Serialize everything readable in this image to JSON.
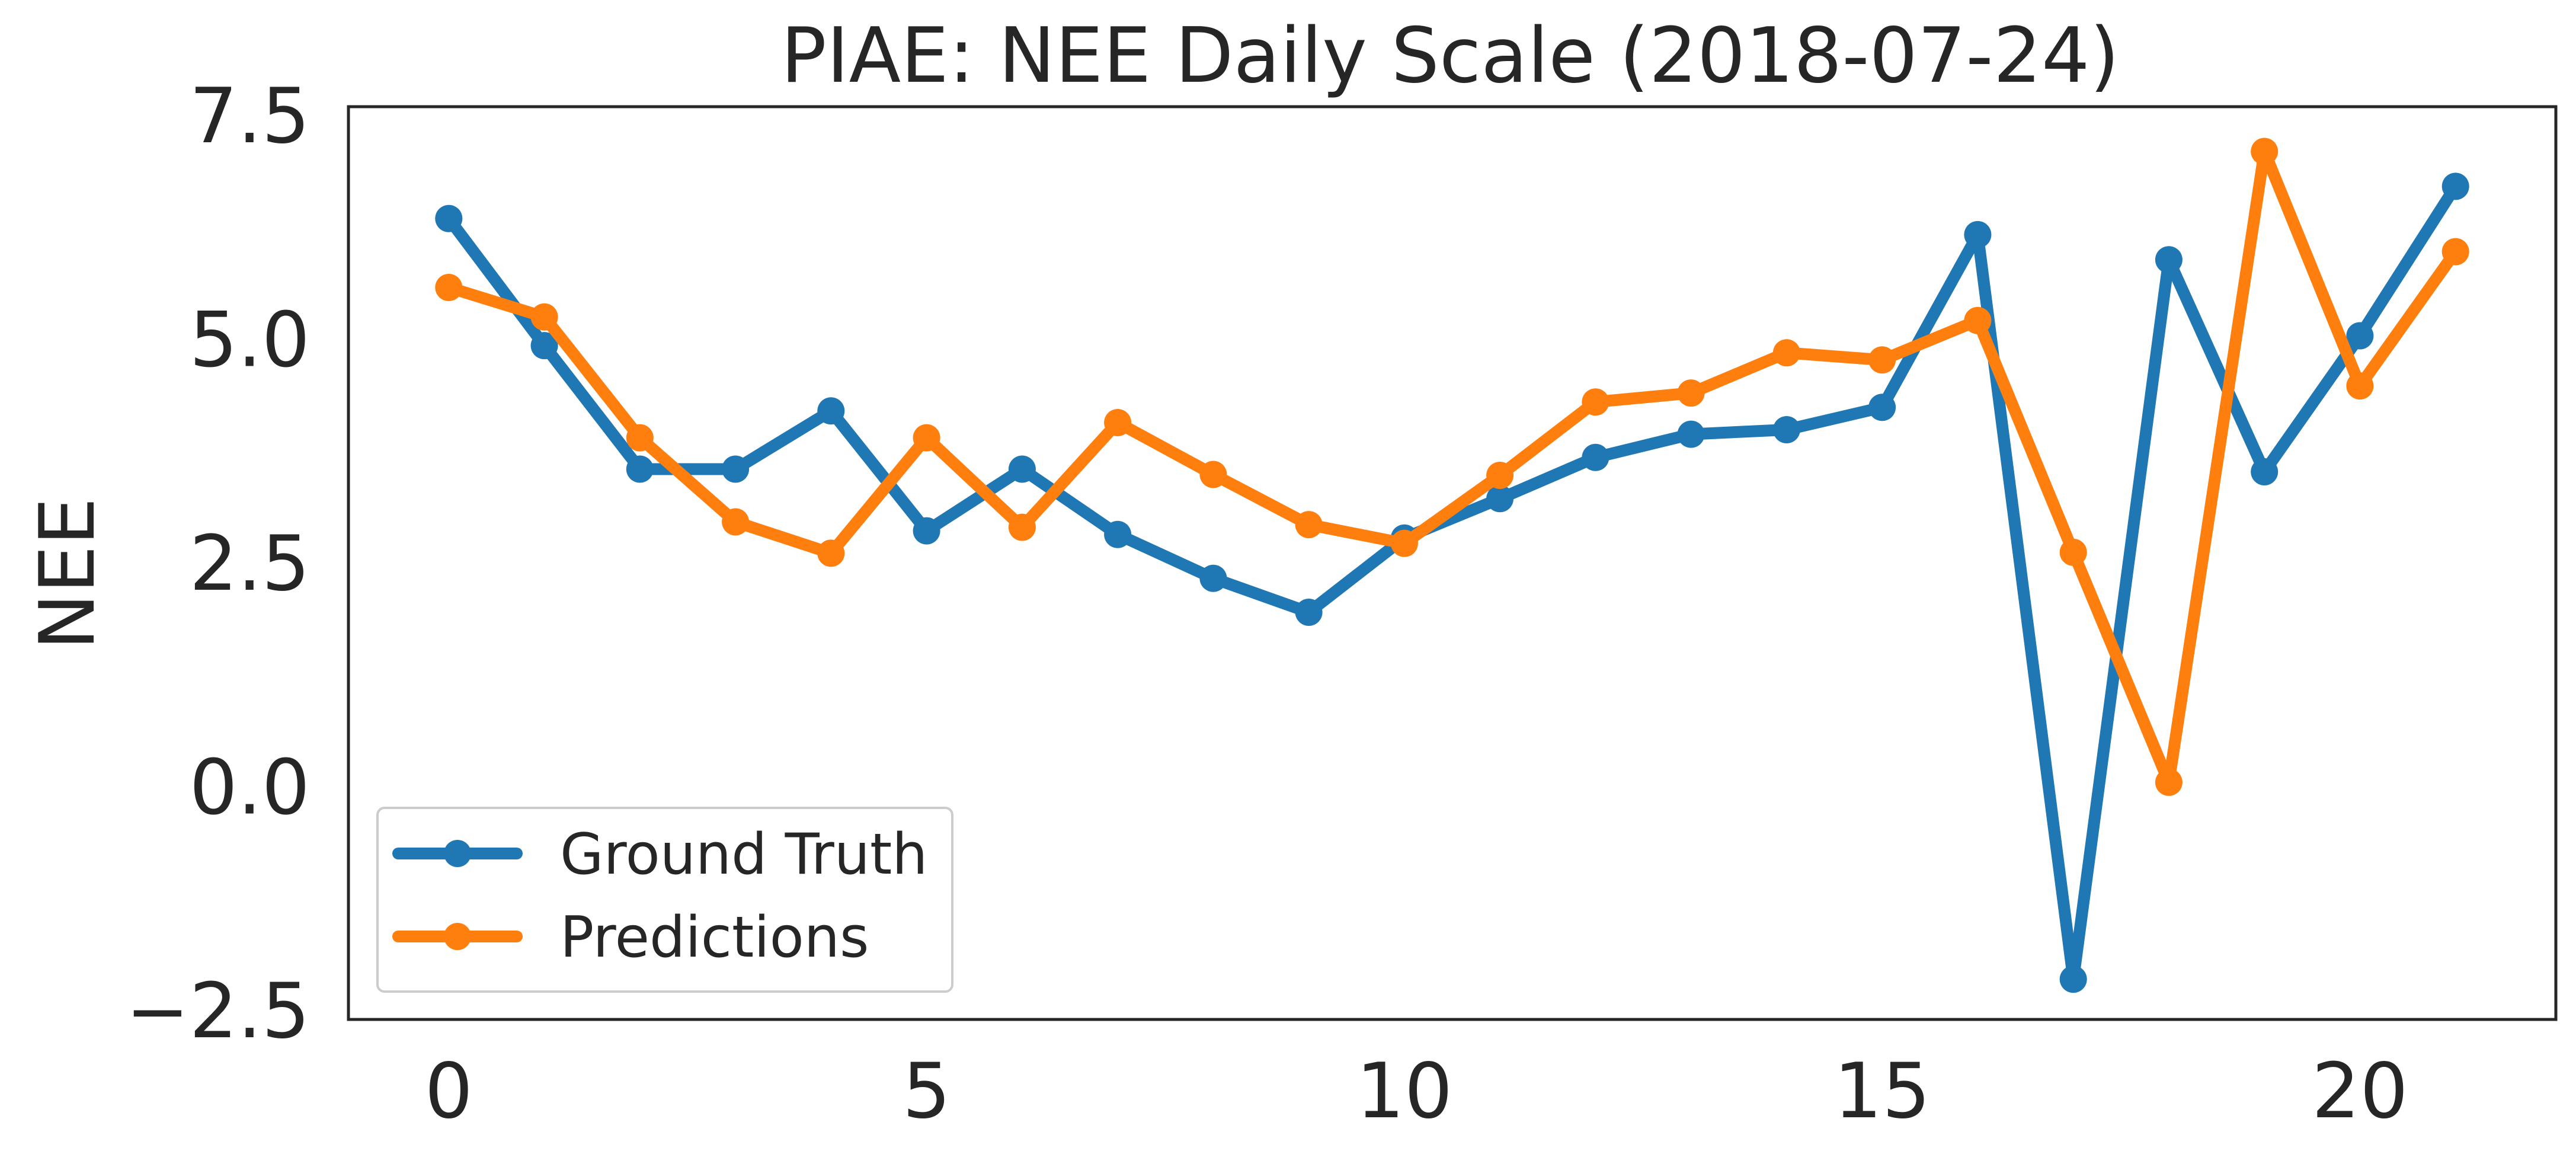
{
  "chart_data": {
    "type": "line",
    "title": "PIAE: NEE Daily Scale (2018-07-24)",
    "xlabel": "",
    "ylabel": "NEE",
    "xlim": [
      -1.05,
      22.05
    ],
    "ylim": [
      -2.6,
      7.6
    ],
    "x_ticks": [
      0,
      5,
      10,
      15,
      20
    ],
    "x_tick_labels": [
      "0",
      "5",
      "10",
      "15",
      "20"
    ],
    "y_ticks": [
      -2.5,
      0.0,
      2.5,
      5.0,
      7.5
    ],
    "y_tick_labels": [
      "−2.5",
      "0.0",
      "2.5",
      "5.0",
      "7.5"
    ],
    "grid": false,
    "legend_position": "lower-left",
    "x": [
      0,
      1,
      2,
      3,
      4,
      5,
      6,
      7,
      8,
      9,
      10,
      11,
      12,
      13,
      14,
      15,
      16,
      17,
      18,
      19,
      20,
      21
    ],
    "series": [
      {
        "name": "Ground Truth",
        "color": "#1f77b4",
        "values": [
          6.35,
          4.93,
          3.55,
          3.55,
          4.2,
          2.86,
          3.55,
          2.82,
          2.33,
          1.95,
          2.78,
          3.22,
          3.68,
          3.94,
          3.99,
          4.24,
          6.17,
          -2.15,
          5.89,
          3.52,
          5.04,
          6.71
        ]
      },
      {
        "name": "Predictions",
        "color": "#ff7f0e",
        "values": [
          5.58,
          5.25,
          3.9,
          2.96,
          2.61,
          3.9,
          2.9,
          4.07,
          3.49,
          2.93,
          2.72,
          3.48,
          4.3,
          4.4,
          4.85,
          4.77,
          5.21,
          2.62,
          0.05,
          7.1,
          4.48,
          5.98
        ]
      }
    ]
  }
}
